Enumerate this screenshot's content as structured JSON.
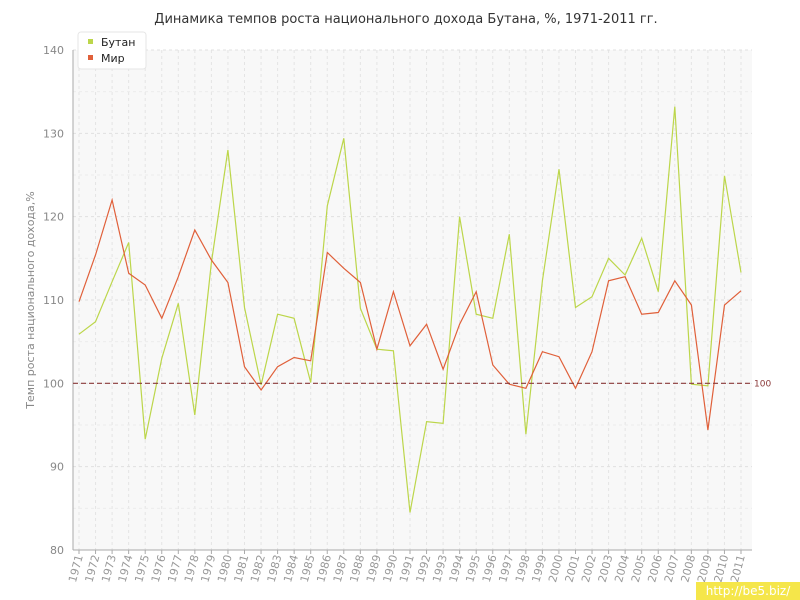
{
  "chart_data": {
    "type": "line",
    "title": "Динамика темпов роста национального дохода Бутана, %, 1971-2011 гг.",
    "ylabel": "Темп роста национального дохода,%",
    "xlabel": "",
    "ylim": [
      80,
      140
    ],
    "yticks": [
      80,
      90,
      100,
      110,
      120,
      130,
      140
    ],
    "categories": [
      "1971",
      "1972",
      "1973",
      "1974",
      "1975",
      "1976",
      "1977",
      "1978",
      "1979",
      "1980",
      "1981",
      "1982",
      "1983",
      "1984",
      "1985",
      "1986",
      "1987",
      "1988",
      "1989",
      "1990",
      "1991",
      "1992",
      "1993",
      "1994",
      "1995",
      "1996",
      "1997",
      "1998",
      "1999",
      "2000",
      "2001",
      "2002",
      "2003",
      "2004",
      "2005",
      "2006",
      "2007",
      "2008",
      "2009",
      "2010",
      "2011"
    ],
    "series": [
      {
        "name": "Бутан",
        "color": "#bcd64a",
        "values": [
          105.9,
          107.4,
          112.2,
          116.9,
          93.3,
          103.0,
          109.6,
          96.2,
          114.5,
          128.0,
          109.1,
          99.8,
          108.3,
          107.8,
          100.1,
          121.3,
          129.4,
          109.0,
          104.1,
          103.9,
          84.5,
          95.4,
          95.2,
          120.0,
          108.3,
          107.8,
          117.9,
          93.9,
          112.3,
          125.7,
          109.1,
          110.4,
          115.0,
          113.0,
          117.4,
          111.0,
          133.2,
          99.9,
          99.7,
          124.9,
          113.3
        ]
      },
      {
        "name": "Мир",
        "color": "#e0603a",
        "values": [
          109.8,
          115.4,
          122.0,
          113.2,
          111.8,
          107.8,
          112.8,
          118.4,
          114.8,
          112.1,
          102.0,
          99.2,
          102.0,
          103.1,
          102.7,
          115.7,
          113.8,
          112.1,
          104.1,
          111.0,
          104.5,
          107.1,
          101.7,
          107.1,
          111.0,
          102.2,
          99.9,
          99.4,
          103.8,
          103.2,
          99.4,
          103.8,
          112.3,
          112.8,
          108.3,
          108.5,
          112.3,
          109.4,
          94.4,
          109.4,
          111.1
        ]
      }
    ],
    "reference_line": {
      "value": 100,
      "label": "100",
      "color": "#8b3a3a",
      "style": "dashed"
    },
    "grid": true,
    "legend_position": "top-left"
  },
  "watermark": "http://be5.biz/"
}
